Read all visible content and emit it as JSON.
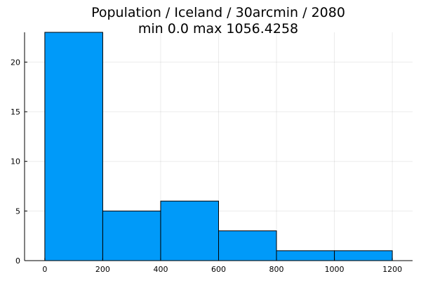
{
  "chart_data": {
    "type": "bar",
    "title": "Population / Iceland / 30arcmin / 2080",
    "subtitle": "min 0.0  max 1056.4258",
    "xlabel": "",
    "ylabel": "",
    "bin_edges": [
      0,
      200,
      400,
      600,
      800,
      1000,
      1200
    ],
    "values": [
      23,
      5,
      6,
      3,
      1,
      1
    ],
    "xlim": [
      -70,
      1270
    ],
    "ylim": [
      0,
      23
    ],
    "xticks": [
      0,
      200,
      400,
      600,
      800,
      1000,
      1200
    ],
    "yticks": [
      0,
      5,
      10,
      15,
      20
    ],
    "grid": true,
    "legend": "none",
    "bar_color": "#009af9"
  }
}
